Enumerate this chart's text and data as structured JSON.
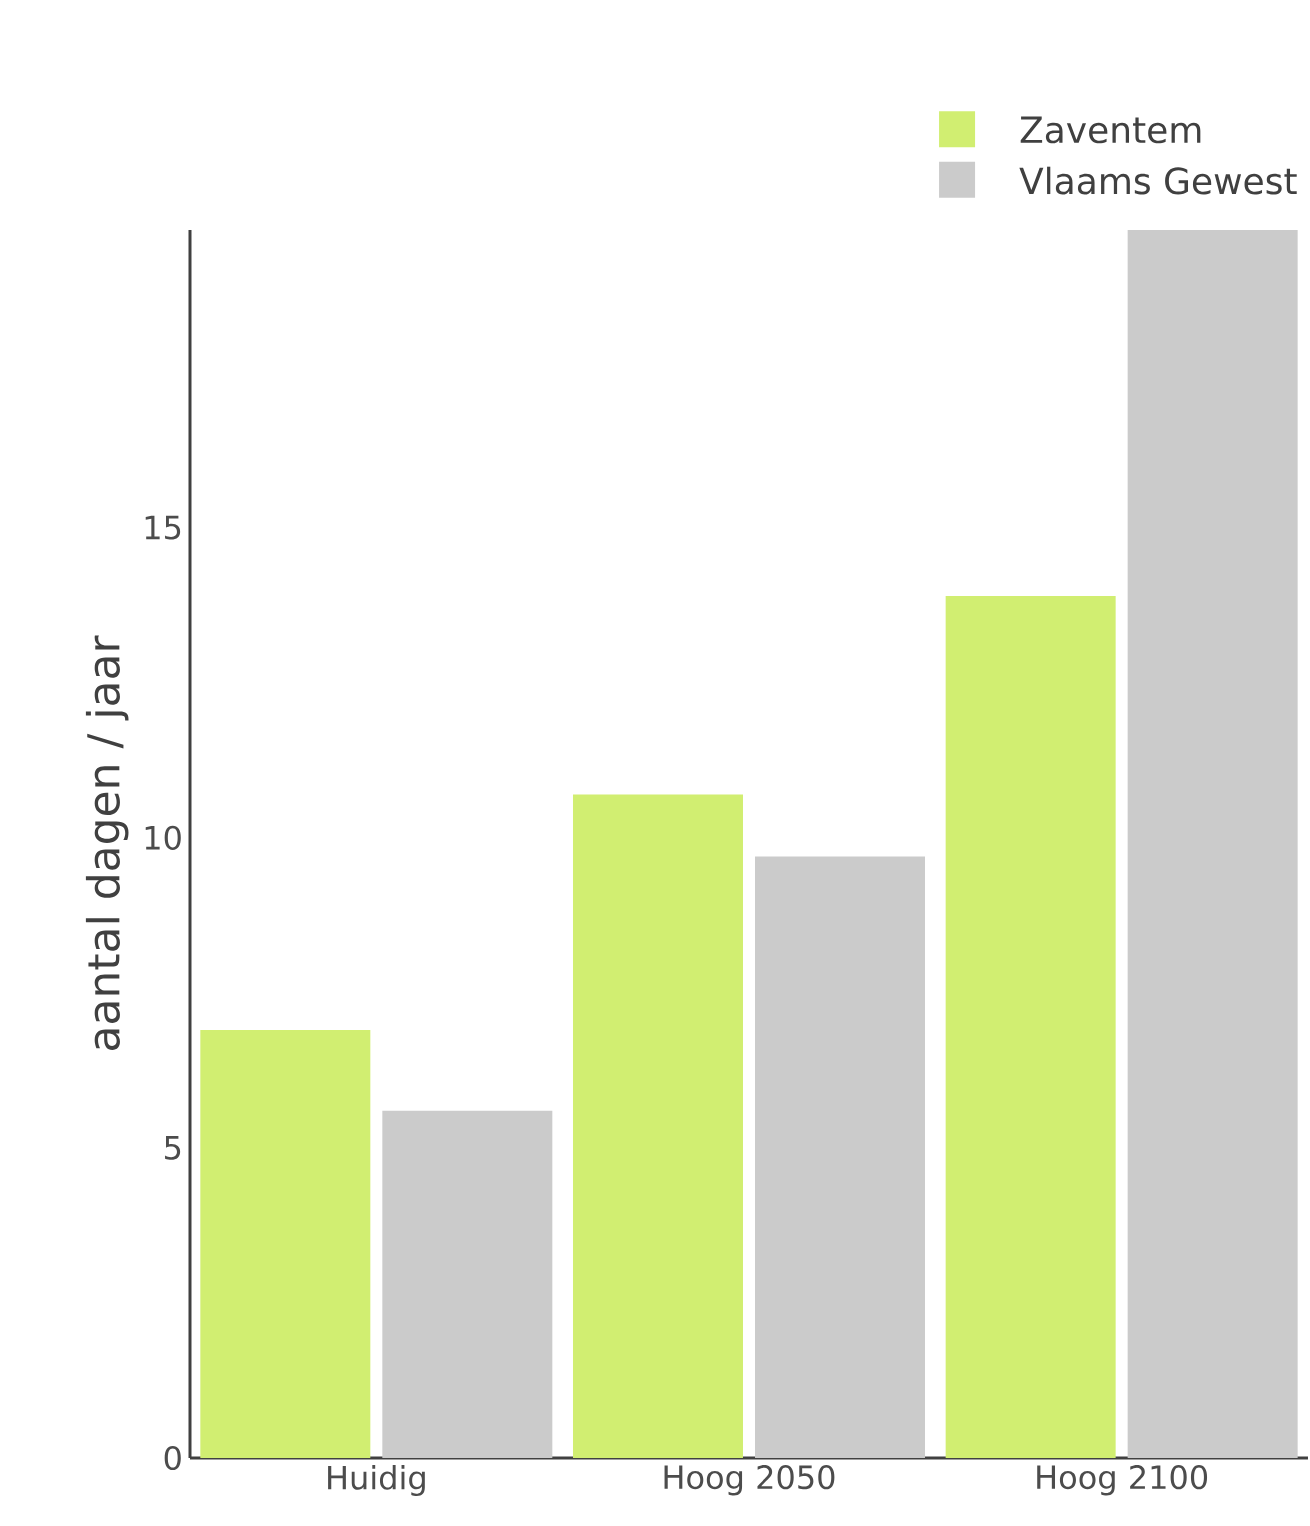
{
  "chart_data": {
    "type": "bar",
    "ylabel": "aantal dagen / jaar",
    "categories": [
      "Huidig",
      "Hoog 2050",
      "Hoog 2100"
    ],
    "series": [
      {
        "name": "Zaventem",
        "color": "#d1ee71",
        "values": [
          6.9,
          10.7,
          13.9
        ]
      },
      {
        "name": "Vlaams Gewest",
        "color": "#cbcbcb",
        "values": [
          5.6,
          9.7,
          19.8
        ]
      }
    ],
    "ylim": [
      0,
      19.8
    ],
    "yticks": [
      0,
      5,
      10,
      15
    ],
    "grid": false,
    "legend": "top right"
  }
}
